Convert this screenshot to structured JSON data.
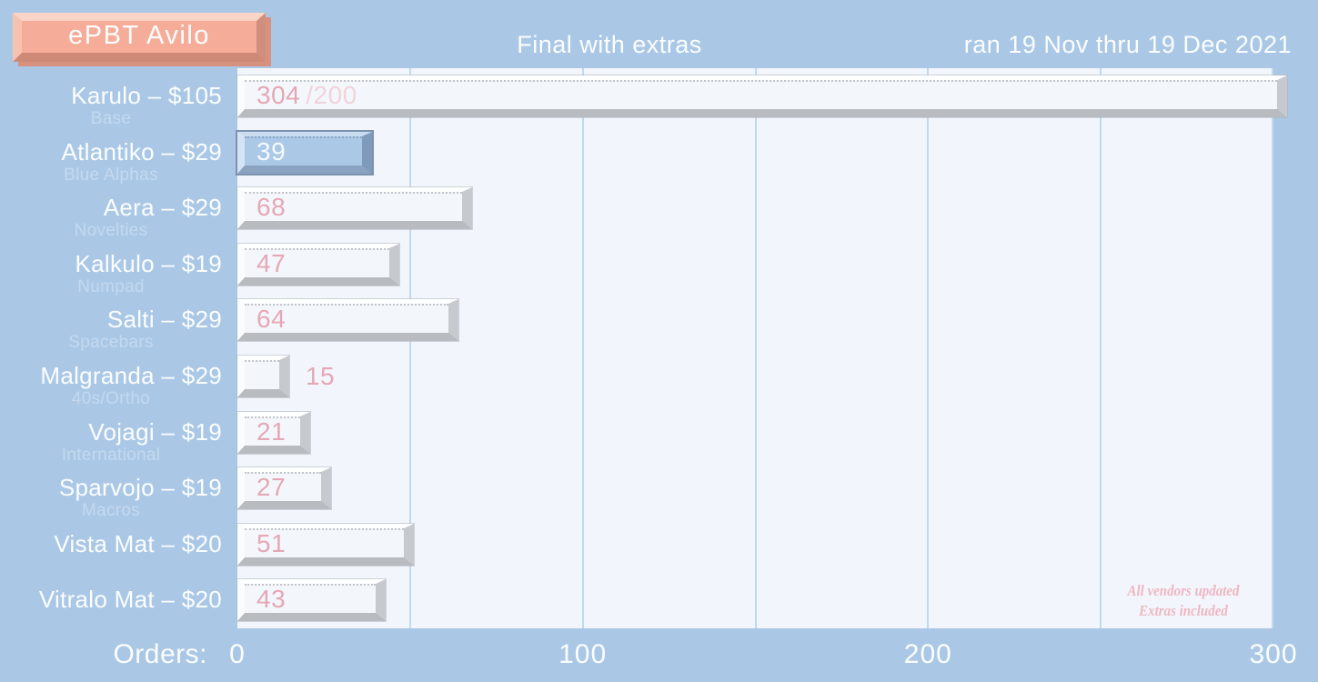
{
  "header": {
    "logo": "ePBT Avilo",
    "title": "Final with extras",
    "date_range": "ran 19 Nov thru 19 Dec 2021"
  },
  "axis": {
    "label": "Orders:",
    "ticks": [
      0,
      100,
      200,
      300
    ]
  },
  "annotation": {
    "line1": "All vendors updated",
    "line2": "Extras included"
  },
  "colors": {
    "background": "#aac8e6",
    "plot_background": "#f2f6fc",
    "gridline": "#bfd9ee",
    "bar_face": "#f3f7fb",
    "bar_shadow": "#b8bbbf",
    "highlight_bar_face": "#abc9e7",
    "highlight_bar_frame": "#7d93ad",
    "value_pink": "#e5a7b5",
    "value_pink_light": "#f1d3da",
    "label_white": "#fbfdfe",
    "sublabel_blue": "#c4d8ee",
    "logo_salmon": "#f5ad99",
    "annotation_pink": "#efb6c0"
  },
  "chart_data": {
    "type": "bar",
    "orientation": "horizontal",
    "title": "Final with extras",
    "subtitle": "ran 19 Nov thru 19 Dec 2021",
    "xlabel": "Orders",
    "xlim": [
      0,
      300
    ],
    "grid_step": 50,
    "x_ticks": [
      0,
      100,
      200,
      300
    ],
    "legend": null,
    "items": [
      {
        "label": "Karulo – $105",
        "sublabel": "Base",
        "value": 304,
        "value_note": "/200",
        "highlight": false
      },
      {
        "label": "Atlantiko – $29",
        "sublabel": "Blue Alphas",
        "value": 39,
        "value_note": "",
        "highlight": true
      },
      {
        "label": "Aera – $29",
        "sublabel": "Novelties",
        "value": 68,
        "value_note": "",
        "highlight": false
      },
      {
        "label": "Kalkulo – $19",
        "sublabel": "Numpad",
        "value": 47,
        "value_note": "",
        "highlight": false
      },
      {
        "label": "Salti – $29",
        "sublabel": "Spacebars",
        "value": 64,
        "value_note": "",
        "highlight": false
      },
      {
        "label": "Malgranda – $29",
        "sublabel": "40s/Ortho",
        "value": 15,
        "value_note": "",
        "highlight": false
      },
      {
        "label": "Vojagi – $19",
        "sublabel": "International",
        "value": 21,
        "value_note": "",
        "highlight": false
      },
      {
        "label": "Sparvojo – $19",
        "sublabel": "Macros",
        "value": 27,
        "value_note": "",
        "highlight": false
      },
      {
        "label": "Vista Mat – $20",
        "sublabel": "",
        "value": 51,
        "value_note": "",
        "highlight": false
      },
      {
        "label": "Vitralo Mat – $20",
        "sublabel": "",
        "value": 43,
        "value_note": "",
        "highlight": false
      }
    ]
  }
}
